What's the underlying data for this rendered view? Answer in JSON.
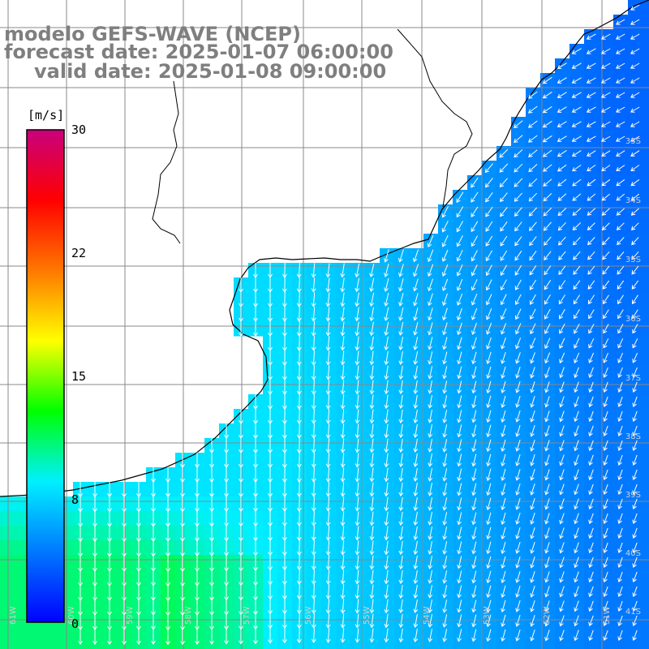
{
  "title": {
    "model": "modelo GEFS-WAVE (NCEP)",
    "forecast": "forecast date: 2025-01-07 06:00:00",
    "valid": "valid date: 2025-01-08 09:00:00"
  },
  "colorbar": {
    "unit": "[m/s]",
    "ticks": [
      "30",
      "22",
      "15",
      "8",
      "0"
    ],
    "stops": [
      "#0000ff",
      "#0078ff",
      "#00f0ff",
      "#00ff00",
      "#ffff00",
      "#ff7800",
      "#ff0000",
      "#c8007d"
    ]
  },
  "map": {
    "lat_labels": [
      "33S",
      "34S",
      "35S",
      "36S",
      "37S",
      "38S",
      "39S",
      "40S",
      "41S"
    ],
    "lon_labels": [
      "61W",
      "60W",
      "59W",
      "58W",
      "57W",
      "56W",
      "55W",
      "54W",
      "53W",
      "52W",
      "51W"
    ],
    "colors": {
      "land": "#ffffff",
      "grid": "#888888",
      "coast": "#000000",
      "arrows": "#ffffff"
    }
  }
}
